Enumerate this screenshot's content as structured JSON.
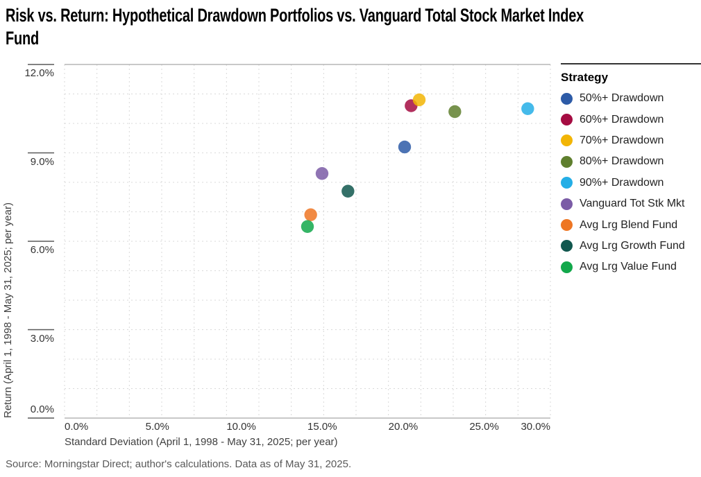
{
  "title": {
    "line1": "Risk vs. Return: Hypothetical Drawdown Portfolios vs. Vanguard Total Stock Market Index",
    "line2": "Fund"
  },
  "source_note": "Source: Morningstar Direct; author's calculations. Data as of May 31, 2025.",
  "colors": {
    "grid": "#d9d9d9",
    "axis_line": "#a6a6a6",
    "tick_mark": "#595959",
    "axis_text": "#333333",
    "axis_title_text": "#404040",
    "legend_rule": "#333333"
  },
  "chart_data": {
    "type": "scatter",
    "title": "Risk vs. Return: Hypothetical Drawdown Portfolios vs. Vanguard Total Stock Market Index Fund",
    "xlabel": "Standard Deviation (April 1, 1998 - May 31, 2025; per year)",
    "ylabel": "Return (April 1, 1998 - May 31, 2025; per year)",
    "x_units": "percent",
    "y_units": "percent",
    "xlim": [
      0,
      30
    ],
    "ylim": [
      0,
      12
    ],
    "x_ticks": [
      {
        "value": 0,
        "label": "0.0%"
      },
      {
        "value": 5,
        "label": "5.0%"
      },
      {
        "value": 10,
        "label": "10.0%"
      },
      {
        "value": 15,
        "label": "15.0%"
      },
      {
        "value": 20,
        "label": "20.0%"
      },
      {
        "value": 25,
        "label": "25.0%"
      },
      {
        "value": 30,
        "label": "30.0%"
      }
    ],
    "y_ticks": [
      {
        "value": 12,
        "label": "12.0%"
      },
      {
        "value": 9,
        "label": "9.0%"
      },
      {
        "value": 6,
        "label": "6.0%"
      },
      {
        "value": 3,
        "label": "3.0%"
      },
      {
        "value": 0,
        "label": "0.0%"
      }
    ],
    "grid": {
      "x_step": 2,
      "y_step": 1,
      "style": "dotted"
    },
    "legend_title": "Strategy",
    "legend_position": "right",
    "point_opacity": 0.85,
    "point_radius": 9.2,
    "series": [
      {
        "name": "50%+ Drawdown",
        "color": "#2d5ba7",
        "x": 21.0,
        "y": 9.2
      },
      {
        "name": "60%+ Drawdown",
        "color": "#a50c42",
        "x": 21.4,
        "y": 10.6
      },
      {
        "name": "70%+ Drawdown",
        "color": "#f2b505",
        "x": 21.9,
        "y": 10.8
      },
      {
        "name": "80%+ Drawdown",
        "color": "#5f7f2e",
        "x": 24.1,
        "y": 10.4
      },
      {
        "name": "90%+ Drawdown",
        "color": "#24aee6",
        "x": 28.6,
        "y": 10.5
      },
      {
        "name": "Vanguard Tot Stk Mkt",
        "color": "#7b5ca6",
        "x": 15.9,
        "y": 8.3
      },
      {
        "name": "Avg Lrg Blend Fund",
        "color": "#ee7623",
        "x": 15.2,
        "y": 6.9
      },
      {
        "name": "Avg Lrg Growth Fund",
        "color": "#11574e",
        "x": 17.5,
        "y": 7.7
      },
      {
        "name": "Avg Lrg Value Fund",
        "color": "#12a84b",
        "x": 15.0,
        "y": 6.5
      }
    ]
  }
}
